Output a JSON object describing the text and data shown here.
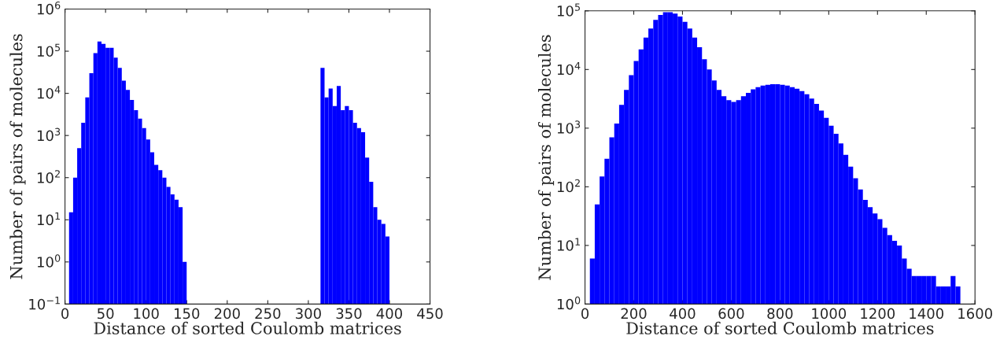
{
  "chart_data": [
    {
      "type": "histogram",
      "xlabel": "Distance of sorted Coulomb matrices",
      "ylabel": "Number of pairs of molecules",
      "log": "y",
      "color": "#0000ff",
      "grid": false,
      "legend": false,
      "bins": [
        5,
        10,
        15,
        20,
        25,
        30,
        35,
        40,
        45,
        50,
        55,
        60,
        65,
        70,
        75,
        80,
        85,
        90,
        95,
        100,
        105,
        110,
        115,
        120,
        125,
        130,
        135,
        140,
        145,
        150,
        155,
        160,
        165,
        170,
        175,
        180,
        185,
        190,
        195,
        200,
        205,
        210,
        215,
        220,
        225,
        230,
        235,
        240,
        245,
        250,
        255,
        260,
        265,
        270,
        275,
        280,
        285,
        290,
        295,
        300,
        305,
        310,
        315,
        320,
        325,
        330,
        335,
        340,
        345,
        350,
        355,
        360,
        365,
        370,
        375,
        380,
        385,
        390,
        395,
        400
      ],
      "values": [
        15,
        100,
        500,
        2000,
        8000,
        30000,
        90000,
        170000,
        150000,
        120000,
        120000,
        70000,
        40000,
        20000,
        12000,
        7000,
        4000,
        2500,
        1500,
        800,
        400,
        200,
        150,
        100,
        60,
        40,
        30,
        20,
        1,
        null,
        null,
        null,
        null,
        null,
        null,
        null,
        null,
        null,
        null,
        null,
        null,
        null,
        null,
        null,
        null,
        null,
        null,
        null,
        null,
        null,
        null,
        null,
        null,
        null,
        null,
        null,
        null,
        null,
        null,
        null,
        null,
        null,
        40000,
        8000,
        13000,
        5000,
        15000,
        4000,
        5000,
        4000,
        2000,
        1500,
        1200,
        300,
        80,
        20,
        10,
        8,
        4
      ],
      "xlim": [
        0,
        450
      ],
      "xticks": [
        0,
        50,
        100,
        150,
        200,
        250,
        300,
        350,
        400,
        450
      ],
      "ylim": [
        0.1,
        1000000
      ],
      "yticks": [
        {
          "value": 0.1,
          "label": "10$^{−1}$"
        },
        {
          "value": 1,
          "label": "10$^{0}$"
        },
        {
          "value": 10,
          "label": "10$^{1}$"
        },
        {
          "value": 100,
          "label": "10$^{2}$"
        },
        {
          "value": 1000,
          "label": "10$^{3}$"
        },
        {
          "value": 10000,
          "label": "10$^{4}$"
        },
        {
          "value": 100000,
          "label": "10$^{5}$"
        },
        {
          "value": 1000000,
          "label": "10$^{6}$"
        }
      ]
    },
    {
      "type": "histogram",
      "xlabel": "Distance of sorted Coulomb matrices",
      "ylabel": "Number of pairs of molecules",
      "log": "y",
      "color": "#0000ff",
      "grid": false,
      "legend": false,
      "bins": [
        20,
        40,
        60,
        80,
        100,
        120,
        140,
        160,
        180,
        200,
        220,
        240,
        260,
        280,
        300,
        320,
        340,
        360,
        380,
        400,
        420,
        440,
        460,
        480,
        500,
        520,
        540,
        560,
        580,
        600,
        620,
        640,
        660,
        680,
        700,
        720,
        740,
        760,
        780,
        800,
        820,
        840,
        860,
        880,
        900,
        920,
        940,
        960,
        980,
        1000,
        1020,
        1040,
        1060,
        1080,
        1100,
        1120,
        1140,
        1160,
        1180,
        1200,
        1220,
        1240,
        1260,
        1280,
        1300,
        1320,
        1340,
        1360,
        1380,
        1400,
        1420,
        1440,
        1460,
        1480,
        1500,
        1520,
        1540
      ],
      "values": [
        6,
        50,
        150,
        300,
        700,
        1200,
        2500,
        4500,
        8000,
        14000,
        22000,
        35000,
        50000,
        70000,
        85000,
        95000,
        95000,
        90000,
        80000,
        65000,
        50000,
        35000,
        24000,
        15000,
        10000,
        6500,
        4500,
        3500,
        3000,
        2800,
        3000,
        3500,
        4000,
        4600,
        5000,
        5300,
        5500,
        5600,
        5600,
        5500,
        5300,
        5000,
        4700,
        4300,
        3800,
        3200,
        2600,
        2000,
        1500,
        1100,
        800,
        550,
        350,
        220,
        140,
        90,
        60,
        45,
        35,
        28,
        20,
        15,
        12,
        10,
        6,
        4,
        3,
        3,
        3,
        3,
        3,
        2,
        2,
        2,
        3,
        2
      ],
      "xlim": [
        0,
        1600
      ],
      "xticks": [
        0,
        200,
        400,
        600,
        800,
        1000,
        1200,
        1400,
        1600
      ],
      "ylim": [
        1,
        100000
      ],
      "yticks": [
        {
          "value": 1,
          "label": "10$^{0}$"
        },
        {
          "value": 10,
          "label": "10$^{1}$"
        },
        {
          "value": 100,
          "label": "10$^{2}$"
        },
        {
          "value": 1000,
          "label": "10$^{3}$"
        },
        {
          "value": 10000,
          "label": "10$^{4}$"
        },
        {
          "value": 100000,
          "label": "10$^{5}$"
        }
      ]
    }
  ]
}
